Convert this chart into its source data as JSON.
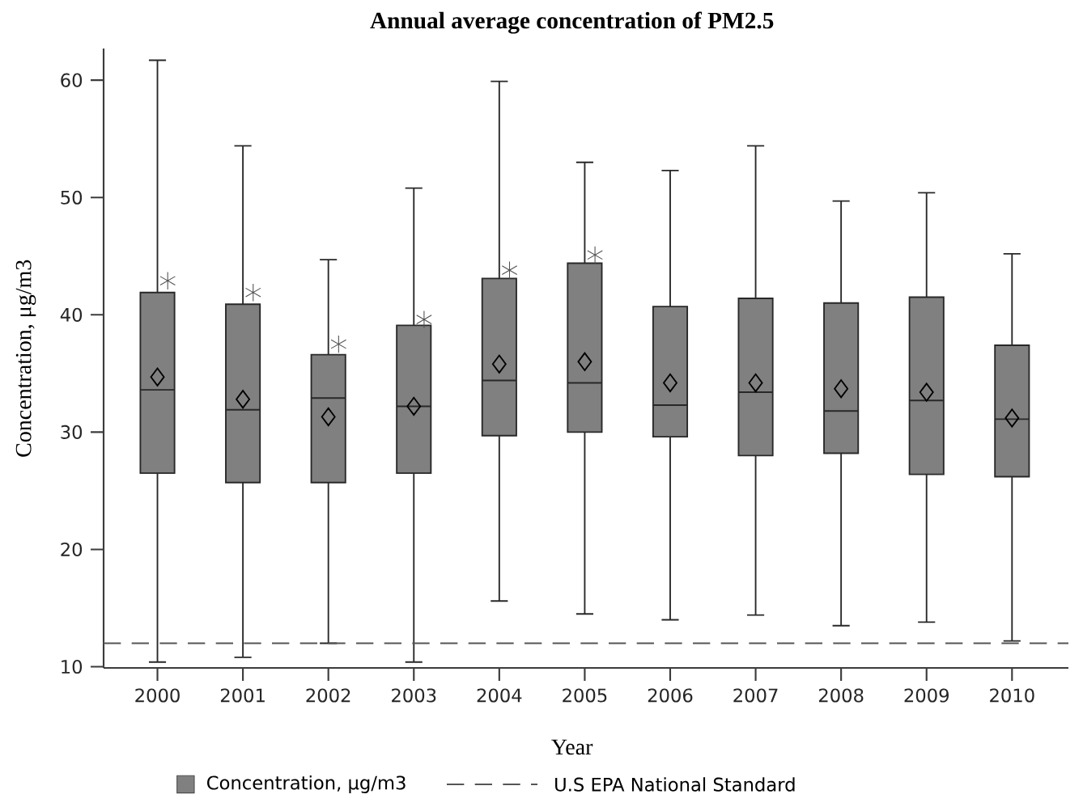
{
  "chart_data": {
    "type": "box",
    "title": "Annual average concentration of PM2.5",
    "xlabel": "Year",
    "ylabel": "Concentration, μg/m3",
    "categories": [
      "2000",
      "2001",
      "2002",
      "2003",
      "2004",
      "2005",
      "2006",
      "2007",
      "2008",
      "2009",
      "2010"
    ],
    "ylim": [
      9.9,
      62.7
    ],
    "yticks": [
      10,
      20,
      30,
      40,
      50,
      60
    ],
    "grid": false,
    "legend": "bottom",
    "series": [
      {
        "name": "Concentration, μg/m3",
        "color": "#808080",
        "boxes": [
          {
            "low": 10.4,
            "q1": 26.5,
            "median": 33.6,
            "q3": 41.9,
            "high": 61.7,
            "mean": 34.7,
            "outliers": [
              42.9
            ]
          },
          {
            "low": 10.8,
            "q1": 25.7,
            "median": 31.9,
            "q3": 40.9,
            "high": 54.4,
            "mean": 32.8,
            "outliers": [
              41.9
            ]
          },
          {
            "low": 12.0,
            "q1": 25.7,
            "median": 32.9,
            "q3": 36.6,
            "high": 44.7,
            "mean": 31.3,
            "outliers": [
              37.5
            ]
          },
          {
            "low": 10.4,
            "q1": 26.5,
            "median": 32.2,
            "q3": 39.1,
            "high": 50.8,
            "mean": 32.2,
            "outliers": [
              39.6
            ]
          },
          {
            "low": 15.6,
            "q1": 29.7,
            "median": 34.4,
            "q3": 43.1,
            "high": 59.9,
            "mean": 35.8,
            "outliers": [
              43.8
            ]
          },
          {
            "low": 14.5,
            "q1": 30.0,
            "median": 34.2,
            "q3": 44.4,
            "high": 53.0,
            "mean": 36.0,
            "outliers": [
              45.1
            ]
          },
          {
            "low": 14.0,
            "q1": 29.6,
            "median": 32.3,
            "q3": 40.7,
            "high": 52.3,
            "mean": 34.2
          },
          {
            "low": 14.4,
            "q1": 28.0,
            "median": 33.4,
            "q3": 41.4,
            "high": 54.4,
            "mean": 34.2
          },
          {
            "low": 13.5,
            "q1": 28.2,
            "median": 31.8,
            "q3": 41.0,
            "high": 49.7,
            "mean": 33.7
          },
          {
            "low": 13.8,
            "q1": 26.4,
            "median": 32.7,
            "q3": 41.5,
            "high": 50.4,
            "mean": 33.4
          },
          {
            "low": 12.2,
            "q1": 26.2,
            "median": 31.1,
            "q3": 37.4,
            "high": 45.2,
            "mean": 31.2
          }
        ]
      }
    ],
    "ref_lines": [
      {
        "axis": "y",
        "value": 12,
        "label": "U.S EPA National Standard",
        "color": "#555555",
        "line_style": "dashed"
      }
    ]
  }
}
